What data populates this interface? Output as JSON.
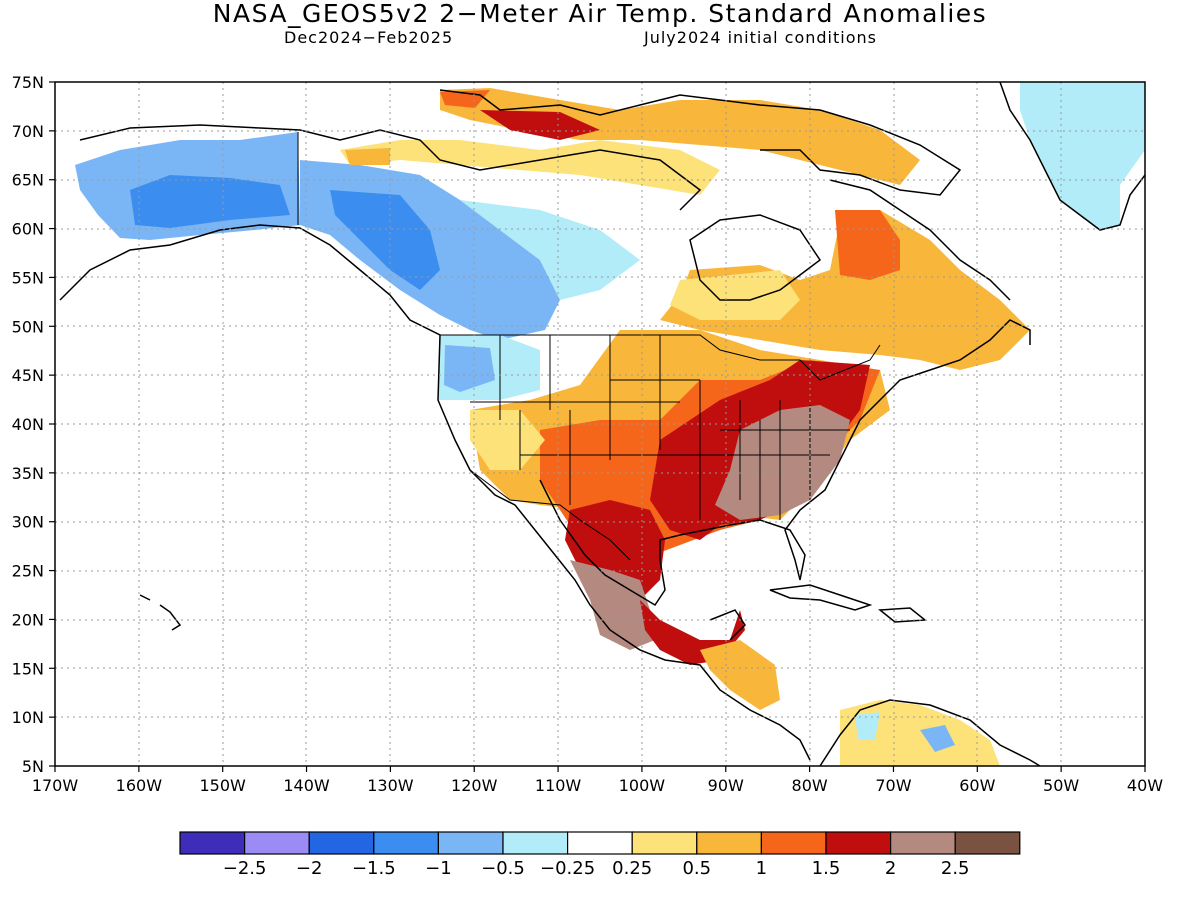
{
  "title": "NASA_GEOS5v2 2−Meter Air Temp. Standard Anomalies",
  "subtitle_left": "Dec2024−Feb2025",
  "subtitle_right": "July2024 initial conditions",
  "lat_labels": [
    "75N",
    "70N",
    "65N",
    "60N",
    "55N",
    "50N",
    "45N",
    "40N",
    "35N",
    "30N",
    "25N",
    "20N",
    "15N",
    "10N",
    "5N"
  ],
  "lon_labels": [
    "170W",
    "160W",
    "150W",
    "140W",
    "130W",
    "120W",
    "110W",
    "100W",
    "90W",
    "80W",
    "70W",
    "60W",
    "50W",
    "40W"
  ],
  "colorbar": {
    "colors": [
      "#3d2db8",
      "#9b8cf5",
      "#2266e3",
      "#3b8ef0",
      "#7ab6f5",
      "#b2ecf8",
      "#ffffff",
      "#fde27a",
      "#f8b63a",
      "#f5661a",
      "#c00d0d",
      "#b48a80",
      "#7a5242"
    ],
    "labels": [
      "−2.5",
      "−2",
      "−1.5",
      "−1",
      "−0.5",
      "−0.25",
      "0.25",
      "0.5",
      "1",
      "1.5",
      "2",
      "2.5"
    ]
  },
  "colors": {
    "ocean": "#ffffff",
    "land_outline": "#000000",
    "grid": "#999999",
    "greenland_ice": "#b2ecf8"
  }
}
